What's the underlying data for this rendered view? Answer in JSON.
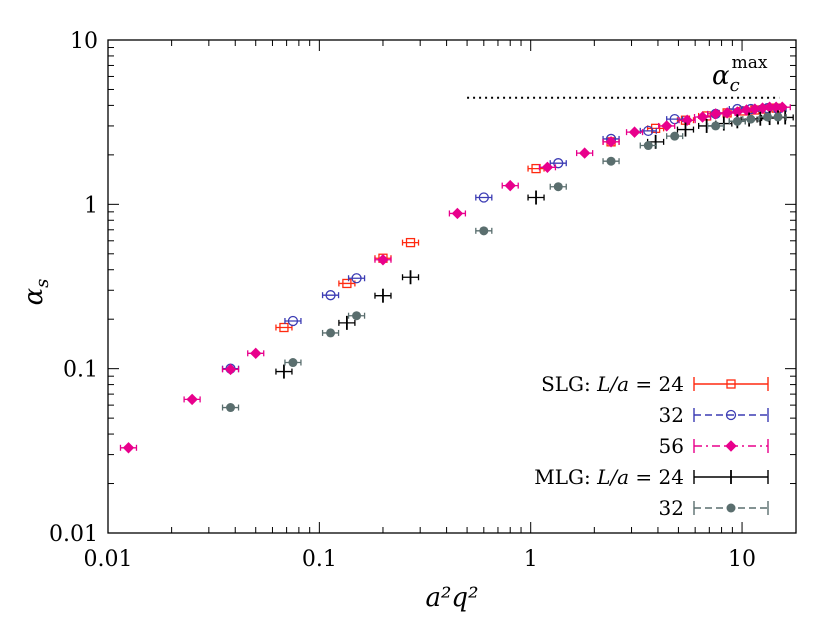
{
  "chart_data": {
    "type": "scatter",
    "x_scale": "log",
    "y_scale": "log",
    "xlim": [
      0.01,
      18
    ],
    "ylim": [
      0.01,
      10
    ],
    "x_ticks": [
      {
        "value": 0.01,
        "label": "0.01"
      },
      {
        "value": 0.1,
        "label": "0.1"
      },
      {
        "value": 1,
        "label": "1"
      },
      {
        "value": 10,
        "label": "10"
      }
    ],
    "y_ticks": [
      {
        "value": 0.01,
        "label": "0.01"
      },
      {
        "value": 0.1,
        "label": "0.1"
      },
      {
        "value": 1,
        "label": "1"
      },
      {
        "value": 10,
        "label": "10"
      }
    ],
    "xlabel": "a²q²",
    "ylabel": "α",
    "ylabel_sub": "s",
    "legend_position": "bottom-right",
    "annotation": {
      "type": "hline",
      "y": 4.45,
      "x_from": 0.5,
      "x_to": 15,
      "style": "dotted",
      "label_base": "α",
      "label_sub": "c",
      "label_sup": "max"
    },
    "series": [
      {
        "name": "SLG: L/a = 24",
        "color": "#ff2a10",
        "marker": "open-square",
        "line": "solid",
        "points": [
          [
            0.068,
            0.178
          ],
          [
            0.135,
            0.33
          ],
          [
            0.2,
            0.47
          ],
          [
            0.27,
            0.585
          ],
          [
            1.06,
            1.65
          ],
          [
            2.4,
            2.4
          ],
          [
            3.9,
            2.9
          ],
          [
            5.4,
            3.25
          ],
          [
            6.8,
            3.45
          ],
          [
            8.5,
            3.6
          ],
          [
            10.2,
            3.7
          ],
          [
            11.5,
            3.75
          ],
          [
            13.0,
            3.8
          ],
          [
            14.5,
            3.85
          ]
        ]
      },
      {
        "name": "32",
        "color": "#3c3cb4",
        "marker": "open-circle",
        "line": "dashed",
        "points": [
          [
            0.038,
            0.1
          ],
          [
            0.075,
            0.195
          ],
          [
            0.113,
            0.28
          ],
          [
            0.15,
            0.355
          ],
          [
            0.6,
            1.1
          ],
          [
            1.35,
            1.78
          ],
          [
            2.4,
            2.5
          ],
          [
            3.6,
            2.8
          ],
          [
            4.8,
            3.3
          ],
          [
            7.5,
            3.55
          ],
          [
            9.5,
            3.8
          ],
          [
            11.0,
            3.8
          ],
          [
            13.2,
            3.85
          ],
          [
            14.8,
            3.8
          ]
        ]
      },
      {
        "name": "56",
        "color": "#e8008c",
        "marker": "filled-diamond",
        "line": "dashdot",
        "points": [
          [
            0.0125,
            0.033
          ],
          [
            0.025,
            0.065
          ],
          [
            0.038,
            0.099
          ],
          [
            0.05,
            0.124
          ],
          [
            0.2,
            0.46
          ],
          [
            0.45,
            0.88
          ],
          [
            0.8,
            1.3
          ],
          [
            1.2,
            1.68
          ],
          [
            1.8,
            2.05
          ],
          [
            2.4,
            2.4
          ],
          [
            3.1,
            2.75
          ],
          [
            4.4,
            3.0
          ],
          [
            5.5,
            3.25
          ],
          [
            6.5,
            3.4
          ],
          [
            7.5,
            3.55
          ],
          [
            8.5,
            3.6
          ],
          [
            9.5,
            3.65
          ],
          [
            10.5,
            3.75
          ],
          [
            11.5,
            3.8
          ],
          [
            12.5,
            3.85
          ],
          [
            13.5,
            3.9
          ],
          [
            14.5,
            3.9
          ],
          [
            15.5,
            3.9
          ]
        ]
      },
      {
        "name": "MLG: L/a = 24",
        "color": "#000000",
        "marker": "plus",
        "line": "solid",
        "points": [
          [
            0.068,
            0.096
          ],
          [
            0.135,
            0.19
          ],
          [
            0.2,
            0.278
          ],
          [
            0.27,
            0.36
          ],
          [
            1.06,
            1.1
          ],
          [
            3.9,
            2.4
          ],
          [
            5.4,
            2.85
          ],
          [
            6.8,
            3.0
          ],
          [
            8.2,
            3.1
          ],
          [
            9.5,
            3.2
          ],
          [
            10.8,
            3.28
          ],
          [
            12.2,
            3.32
          ],
          [
            13.5,
            3.35
          ],
          [
            14.8,
            3.38
          ],
          [
            16.0,
            3.38
          ]
        ]
      },
      {
        "name": "32",
        "color": "#5a6e6e",
        "marker": "filled-circle",
        "line": "dashed",
        "points": [
          [
            0.038,
            0.058
          ],
          [
            0.075,
            0.109
          ],
          [
            0.113,
            0.165
          ],
          [
            0.15,
            0.21
          ],
          [
            0.6,
            0.69
          ],
          [
            1.35,
            1.28
          ],
          [
            2.4,
            1.83
          ],
          [
            3.6,
            2.28
          ],
          [
            4.8,
            2.6
          ],
          [
            7.5,
            3.0
          ],
          [
            9.5,
            3.2
          ],
          [
            11.0,
            3.3
          ],
          [
            13.2,
            3.4
          ],
          [
            14.8,
            3.4
          ]
        ]
      }
    ]
  },
  "legend": {
    "rows": [
      {
        "prefix": "SLG: ",
        "var": "L/a",
        "eq": " = 24"
      },
      {
        "prefix": "",
        "var": "",
        "eq": "32"
      },
      {
        "prefix": "",
        "var": "",
        "eq": "56"
      },
      {
        "prefix": "MLG: ",
        "var": "L/a",
        "eq": " = 24"
      },
      {
        "prefix": "",
        "var": "",
        "eq": "32"
      }
    ]
  }
}
